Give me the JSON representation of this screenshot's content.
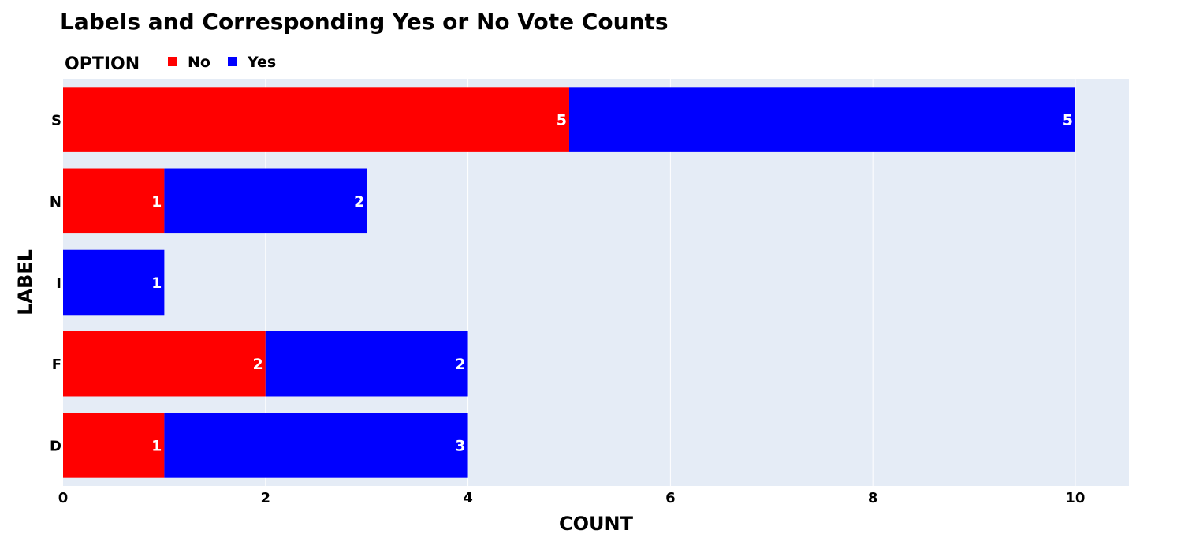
{
  "chart_data": {
    "type": "bar",
    "orientation": "horizontal",
    "stacked": true,
    "title": "Labels and Corresponding Yes or No Vote Counts",
    "xlabel": "COUNT",
    "ylabel": "LABEL",
    "legend_title": "OPTION",
    "legend_position": "top-left",
    "categories": [
      "D",
      "F",
      "I",
      "N",
      "S"
    ],
    "series": [
      {
        "name": "No",
        "color": "#ff0000",
        "values": [
          1,
          2,
          0,
          1,
          5
        ]
      },
      {
        "name": "Yes",
        "color": "#0000ff",
        "values": [
          3,
          2,
          1,
          2,
          5
        ]
      }
    ],
    "xlim": [
      0,
      10.53
    ],
    "xticks": [
      0,
      2,
      4,
      6,
      8,
      10
    ],
    "grid": true,
    "plot_background": "#e5ecf6"
  }
}
